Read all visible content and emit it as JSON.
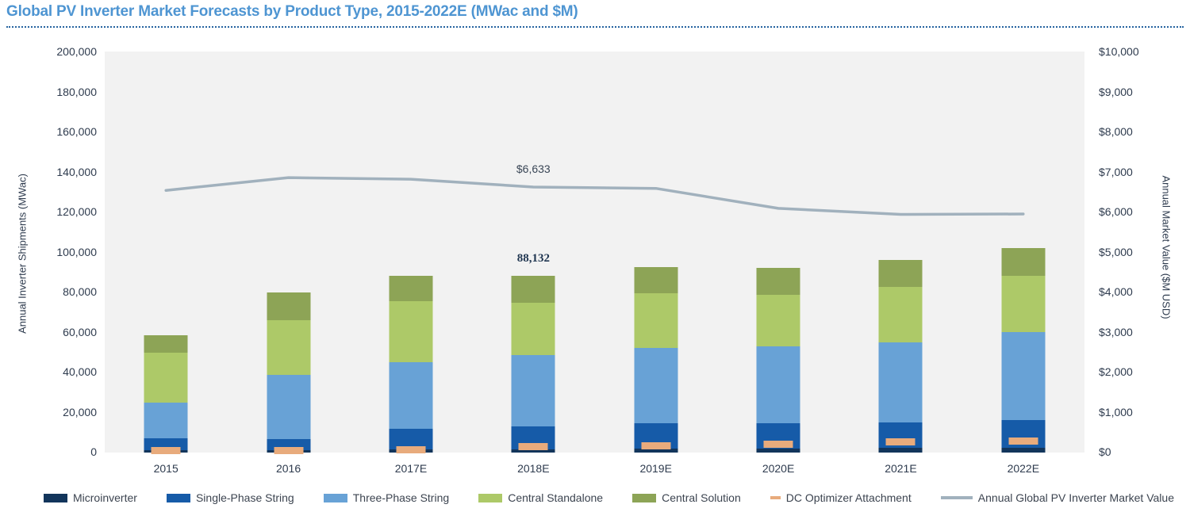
{
  "title": "Global PV Inverter Market Forecasts by Product Type, 2015-2022E (MWac and $M)",
  "colors": {
    "title_blue": "#4e95d2",
    "rule_blue": "#2563a0",
    "plot_background": "#f2f2f2",
    "axis_text": "#2e3b4e",
    "microinverter": "#12355b",
    "single_phase": "#165ba8",
    "three_phase": "#68a2d6",
    "central_standalone": "#adc968",
    "central_solution": "#8da456",
    "dc_optimizer": "#e8ab7c",
    "market_value_line": "#a1b1bd"
  },
  "chart_data": {
    "type": "bar",
    "subtype": "stacked-column-with-line",
    "categories": [
      "2015",
      "2016",
      "2017E",
      "2018E",
      "2019E",
      "2020E",
      "2021E",
      "2022E"
    ],
    "series": [
      {
        "name": "Microinverter",
        "color": "#12355b",
        "values": [
          1000,
          1000,
          1500,
          1500,
          2000,
          2000,
          2500,
          2500
        ]
      },
      {
        "name": "Single-Phase String",
        "color": "#165ba8",
        "values": [
          6100,
          5800,
          10400,
          11600,
          12800,
          12800,
          12500,
          13900
        ]
      },
      {
        "name": "Three-Phase String",
        "color": "#68a2d6",
        "values": [
          17900,
          32100,
          33300,
          35700,
          37300,
          38100,
          40000,
          43800
        ]
      },
      {
        "name": "Central Standalone",
        "color": "#adc968",
        "values": [
          25000,
          27300,
          30600,
          25900,
          27400,
          26100,
          27700,
          28200
        ]
      },
      {
        "name": "Central Solution",
        "color": "#8da456",
        "values": [
          8700,
          14000,
          12700,
          13432,
          13200,
          13100,
          13500,
          13900
        ]
      }
    ],
    "bar_totals": [
      58700,
      80200,
      88500,
      88132,
      92700,
      92100,
      96200,
      102300
    ],
    "marker_series": {
      "name": "DC Optimizer Attachment",
      "color": "#e8ab7c",
      "values": [
        800,
        1000,
        1400,
        2900,
        3400,
        4300,
        5300,
        5900
      ]
    },
    "line_series": {
      "name": "Annual Global PV Inverter Market Value",
      "color": "#a1b1bd",
      "axis": "right",
      "values": [
        6550,
        6870,
        6830,
        6633,
        6600,
        6100,
        5950,
        5960
      ]
    },
    "left_axis": {
      "label": "Annual Inverter Shipments (MWac)",
      "min": 0,
      "max": 200000,
      "step": 20000,
      "tick_labels": [
        "0",
        "20,000",
        "40,000",
        "60,000",
        "80,000",
        "100,000",
        "120,000",
        "140,000",
        "160,000",
        "180,000",
        "200,000"
      ]
    },
    "right_axis": {
      "label": "Annual Market Value ($M USD)",
      "min": 0,
      "max": 10000,
      "step": 1000,
      "tick_labels": [
        "$0",
        "$1,000",
        "$2,000",
        "$3,000",
        "$4,000",
        "$5,000",
        "$6,000",
        "$7,000",
        "$8,000",
        "$9,000",
        "$10,000"
      ]
    },
    "annotations": [
      {
        "text": "$6,633",
        "series": "Annual Global PV Inverter Market Value",
        "category": "2018E"
      },
      {
        "text": "88,132",
        "series": "bar-total",
        "category": "2018E"
      }
    ],
    "grid": false,
    "legend_position": "bottom"
  },
  "legend": {
    "items": [
      {
        "label": "Microinverter",
        "swatch": "rect",
        "color": "#12355b"
      },
      {
        "label": "Single-Phase String",
        "swatch": "rect",
        "color": "#165ba8"
      },
      {
        "label": "Three-Phase String",
        "swatch": "rect",
        "color": "#68a2d6"
      },
      {
        "label": "Central Standalone",
        "swatch": "rect",
        "color": "#adc968"
      },
      {
        "label": "Central Solution",
        "swatch": "rect",
        "color": "#8da456"
      },
      {
        "label": "DC Optimizer Attachment",
        "swatch": "dash",
        "color": "#e8ab7c"
      },
      {
        "label": "Annual Global PV Inverter Market Value",
        "swatch": "line",
        "color": "#a1b1bd"
      }
    ]
  }
}
